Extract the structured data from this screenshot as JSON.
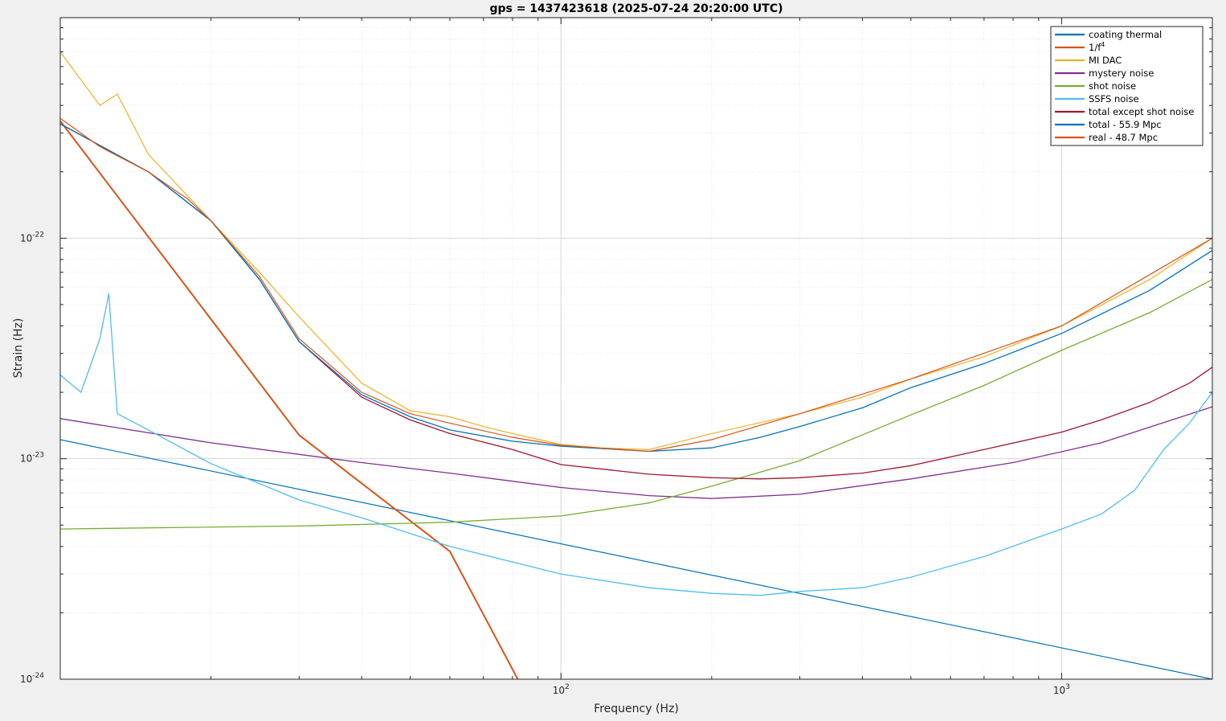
{
  "chart_data": {
    "type": "line",
    "title": "gps = 1437423618 (2025-07-24 20:20:00 UTC)",
    "xlabel": "Frequency (Hz)",
    "ylabel": "Strain (Hz)",
    "x_scale": "log",
    "y_scale": "log",
    "xlim": [
      10,
      2000
    ],
    "ylim": [
      1e-24,
      1e-21
    ],
    "grid": true,
    "legend_position": "top-right",
    "x_ticks": [
      {
        "value": 100,
        "base": "10",
        "exp": "2"
      },
      {
        "value": 1000,
        "base": "10",
        "exp": "3"
      }
    ],
    "y_ticks": [
      {
        "value": 1e-24,
        "base": "10",
        "exp": "-24"
      },
      {
        "value": 1e-23,
        "base": "10",
        "exp": "-23"
      },
      {
        "value": 1e-22,
        "base": "10",
        "exp": "-22"
      }
    ],
    "series": [
      {
        "name": "coating thermal",
        "color": "#0072bd",
        "width": 1.2,
        "x": [
          10,
          2000
        ],
        "y": [
          1.22e-23,
          1e-24
        ]
      },
      {
        "name": "1/f",
        "name_sup": "4",
        "color": "#d95319",
        "width": 2,
        "x": [
          10,
          30,
          60,
          82
        ],
        "y": [
          3.4e-22,
          1.28e-23,
          3.8e-24,
          1e-24
        ]
      },
      {
        "name": "MI DAC",
        "color": "#edb120",
        "width": 1.2,
        "x": [
          10,
          12,
          13,
          15,
          20,
          25,
          30,
          40,
          50,
          60,
          70,
          80,
          100,
          120,
          150,
          200,
          300,
          400,
          500,
          700,
          1000,
          1500,
          2000
        ],
        "y": [
          7e-22,
          4e-22,
          4.5e-22,
          2.4e-22,
          1.2e-22,
          7e-23,
          4.4e-23,
          2.2e-23,
          1.65e-23,
          1.55e-23,
          1.4e-23,
          1.3e-23,
          1.16e-23,
          1.12e-23,
          1.1e-23,
          1.3e-23,
          1.6e-23,
          1.9e-23,
          2.3e-23,
          2.9e-23,
          4e-23,
          6.5e-23,
          1e-22
        ]
      },
      {
        "name": "mystery noise",
        "color": "#7e2f8e",
        "width": 1.3,
        "x": [
          10,
          20,
          40,
          60,
          100,
          150,
          200,
          300,
          500,
          800,
          1200,
          2000
        ],
        "y": [
          1.52e-23,
          1.18e-23,
          9.6e-24,
          8.6e-24,
          7.4e-24,
          6.8e-24,
          6.6e-24,
          6.9e-24,
          8.1e-24,
          9.6e-24,
          1.18e-23,
          1.72e-23
        ]
      },
      {
        "name": "shot noise",
        "color": "#77ac30",
        "width": 1.3,
        "x": [
          10,
          30,
          60,
          100,
          150,
          200,
          300,
          500,
          700,
          1000,
          1500,
          2000
        ],
        "y": [
          4.8e-24,
          4.95e-24,
          5.15e-24,
          5.5e-24,
          6.3e-24,
          7.5e-24,
          9.8e-24,
          1.58e-23,
          2.15e-23,
          3.1e-23,
          4.6e-23,
          6.5e-23
        ]
      },
      {
        "name": "SSFS noise",
        "color": "#4dbeee",
        "width": 1.3,
        "x": [
          10,
          11,
          12,
          12.5,
          13,
          15,
          20,
          30,
          40,
          60,
          100,
          150,
          200,
          250,
          300,
          400,
          500,
          700,
          1000,
          1200,
          1400,
          1600,
          1800,
          2000
        ],
        "y": [
          2.4e-23,
          2e-23,
          3.5e-23,
          5.6e-23,
          1.6e-23,
          1.35e-23,
          9.5e-24,
          6.5e-24,
          5.4e-24,
          4e-24,
          3e-24,
          2.6e-24,
          2.45e-24,
          2.4e-24,
          2.5e-24,
          2.6e-24,
          2.9e-24,
          3.6e-24,
          4.8e-24,
          5.6e-24,
          7.2e-24,
          1.1e-23,
          1.45e-23,
          2e-23
        ]
      },
      {
        "name": "total except shot noise",
        "color": "#a2142f",
        "width": 1.3,
        "x": [
          10,
          15,
          20,
          25,
          30,
          40,
          50,
          60,
          80,
          100,
          150,
          200,
          250,
          300,
          400,
          500,
          700,
          1000,
          1200,
          1500,
          1800,
          2000
        ],
        "y": [
          3.3e-22,
          2e-22,
          1.2e-22,
          6.5e-23,
          3.4e-23,
          1.9e-23,
          1.5e-23,
          1.3e-23,
          1.1e-23,
          9.4e-24,
          8.5e-24,
          8.2e-24,
          8.1e-24,
          8.2e-24,
          8.6e-24,
          9.3e-24,
          1.1e-23,
          1.32e-23,
          1.5e-23,
          1.8e-23,
          2.2e-23,
          2.6e-23
        ]
      },
      {
        "name": "total - 55.9 Mpc",
        "color": "#0072bd",
        "width": 1.3,
        "x": [
          10,
          15,
          20,
          25,
          30,
          40,
          50,
          60,
          80,
          100,
          150,
          200,
          250,
          300,
          400,
          500,
          700,
          1000,
          1500,
          2000
        ],
        "y": [
          3.3e-22,
          2e-22,
          1.2e-22,
          6.5e-23,
          3.4e-23,
          1.95e-23,
          1.55e-23,
          1.35e-23,
          1.2e-23,
          1.14e-23,
          1.08e-23,
          1.12e-23,
          1.25e-23,
          1.4e-23,
          1.7e-23,
          2.1e-23,
          2.7e-23,
          3.7e-23,
          5.8e-23,
          8.8e-23
        ]
      },
      {
        "name": "real - 48.7 Mpc",
        "color": "#d95319",
        "width": 1.2,
        "x": [
          10,
          12,
          15,
          18,
          20,
          25,
          30,
          40,
          50,
          60,
          80,
          100,
          150,
          200,
          300,
          500,
          1000,
          2000
        ],
        "y": [
          3.5e-22,
          2.6e-22,
          2e-22,
          1.5e-22,
          1.2e-22,
          6.7e-23,
          3.5e-23,
          2e-23,
          1.6e-23,
          1.45e-23,
          1.25e-23,
          1.15e-23,
          1.08e-23,
          1.22e-23,
          1.6e-23,
          2.3e-23,
          4e-23,
          1e-22
        ]
      }
    ]
  }
}
